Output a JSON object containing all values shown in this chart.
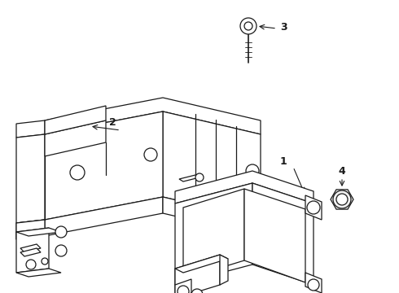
{
  "background_color": "#ffffff",
  "line_color": "#1a1a1a",
  "figsize": [
    4.9,
    3.6
  ],
  "dpi": 100,
  "label_fontsize": 9,
  "components": {
    "bracket_label": "2",
    "sensor_label": "1",
    "bolt_label": "3",
    "nut_label": "4"
  }
}
